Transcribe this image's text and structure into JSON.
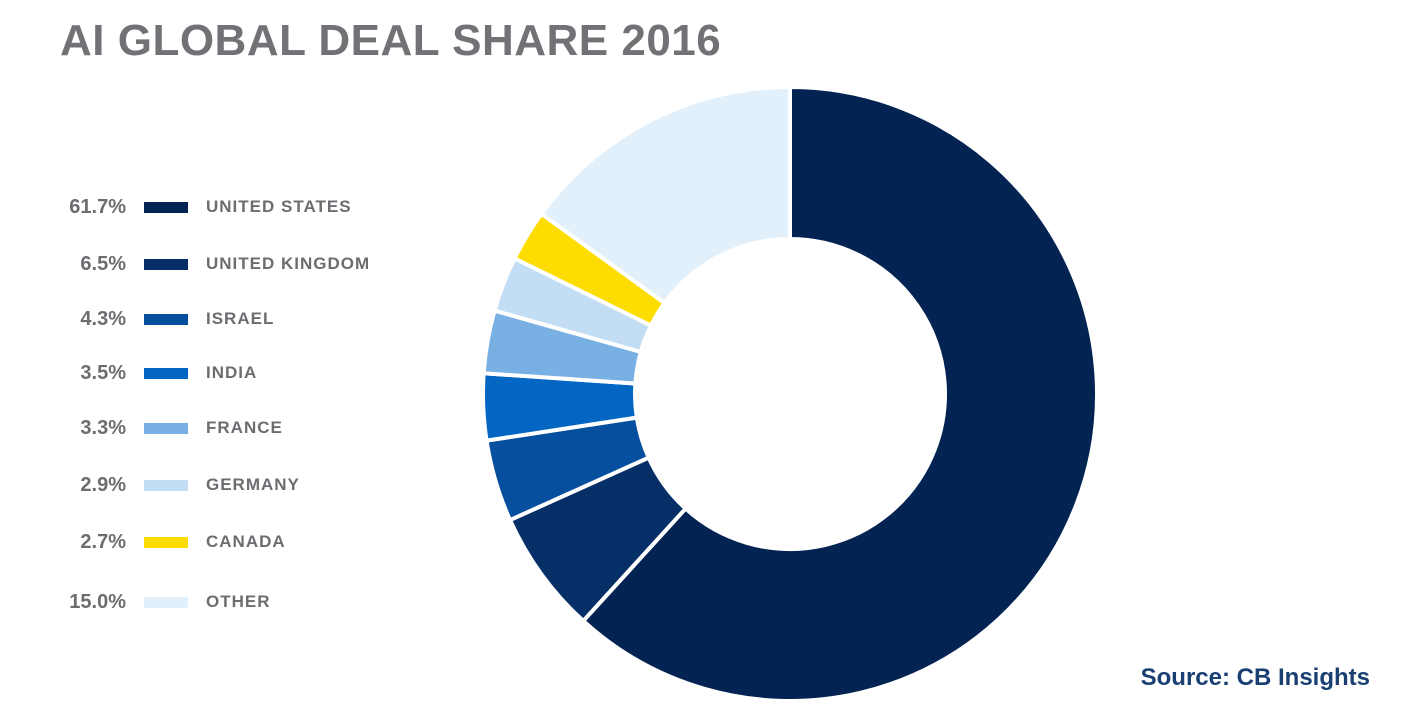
{
  "title": "AI GLOBAL DEAL SHARE 2016",
  "source": "Source: CB Insights",
  "chart_data": {
    "type": "pie",
    "title": "AI GLOBAL DEAL SHARE 2016",
    "donut": true,
    "legend_position": "left",
    "slices": [
      {
        "label": "UNITED STATES",
        "value": 61.7,
        "value_label": "61.7%",
        "color": "#032452"
      },
      {
        "label": "UNITED KINGDOM",
        "value": 6.5,
        "value_label": "6.5%",
        "color": "#062f67"
      },
      {
        "label": "ISRAEL",
        "value": 4.3,
        "value_label": "4.3%",
        "color": "#064e9e"
      },
      {
        "label": "INDIA",
        "value": 3.5,
        "value_label": "3.5%",
        "color": "#0366c3"
      },
      {
        "label": "FRANCE",
        "value": 3.3,
        "value_label": "3.3%",
        "color": "#78b0e3"
      },
      {
        "label": "GERMANY",
        "value": 2.9,
        "value_label": "2.9%",
        "color": "#c3ddf5"
      },
      {
        "label": "CANADA",
        "value": 2.7,
        "value_label": "2.7%",
        "color": "#fddd00"
      },
      {
        "label": "OTHER",
        "value": 15.0,
        "value_label": "15.0%",
        "color": "#e2f0fb"
      }
    ]
  }
}
